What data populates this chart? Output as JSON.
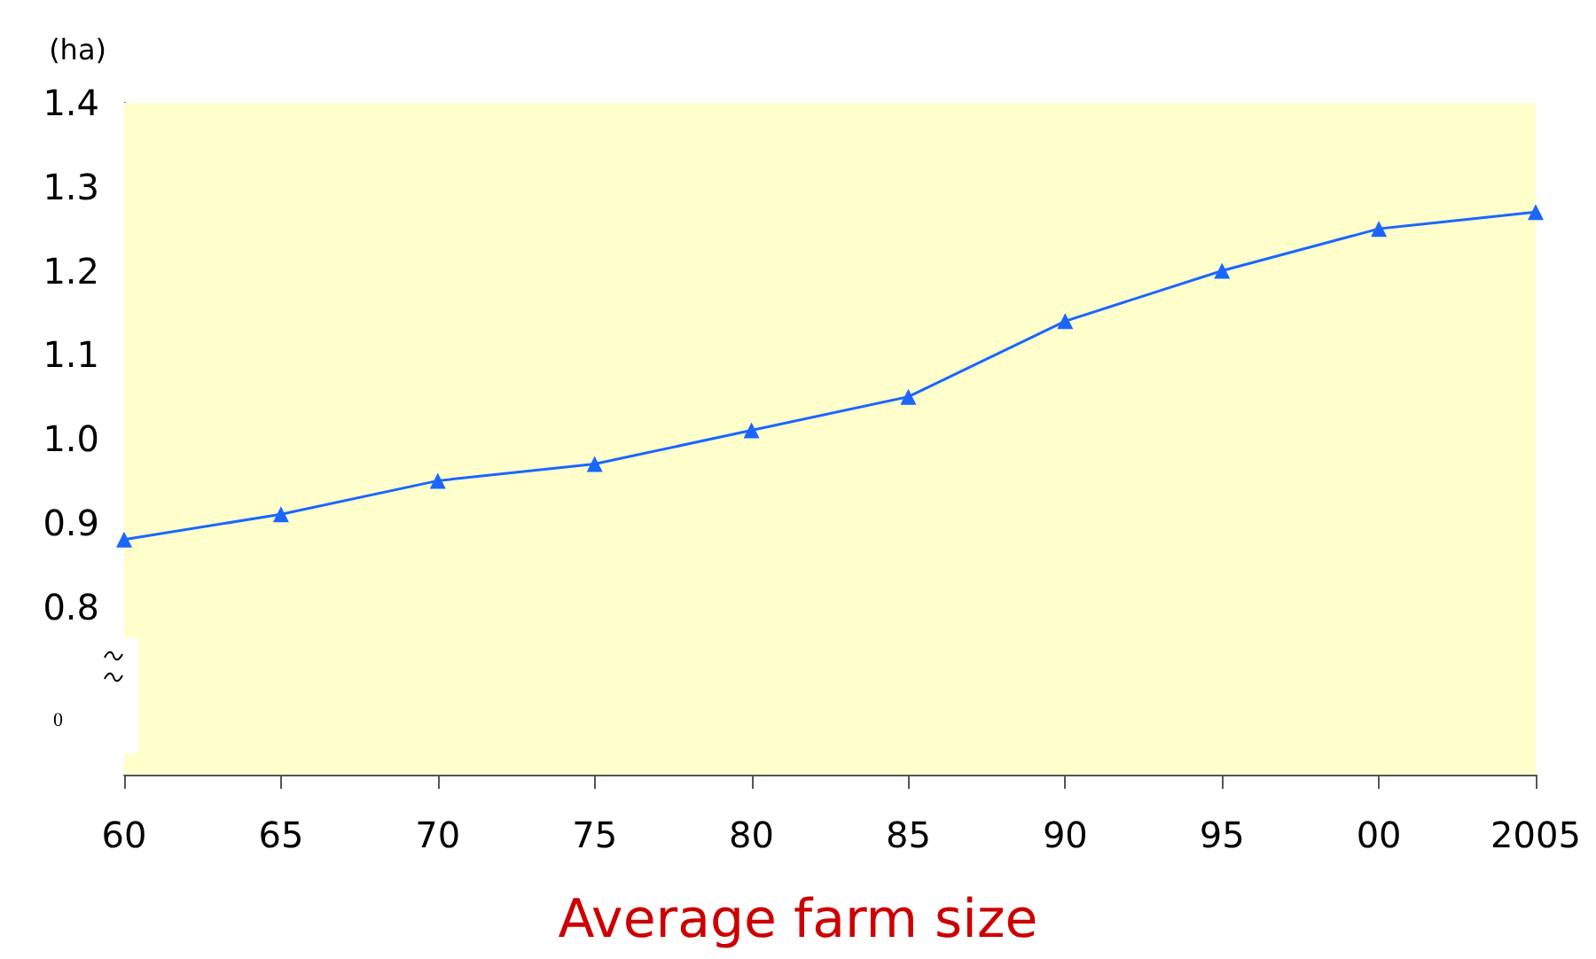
{
  "chart_data": {
    "type": "line",
    "title": "Average farm size",
    "ylabel": "(ha)",
    "categories": [
      "60",
      "65",
      "70",
      "75",
      "80",
      "85",
      "90",
      "95",
      "00",
      "2005"
    ],
    "series": [
      {
        "color": "#1a66ff",
        "values": [
          0.88,
          0.91,
          0.95,
          0.97,
          1.01,
          1.05,
          1.14,
          1.2,
          1.25,
          1.27
        ]
      }
    ],
    "ylim": [
      0.6,
      1.4
    ],
    "yticks": [
      0.8,
      0.9,
      {
        "value": 1.0,
        "label": "1.0"
      },
      1.1,
      1.2,
      1.3,
      1.4
    ],
    "annotations": [
      "0"
    ],
    "marker": "triangle",
    "line_style": "solid",
    "grid": false
  }
}
